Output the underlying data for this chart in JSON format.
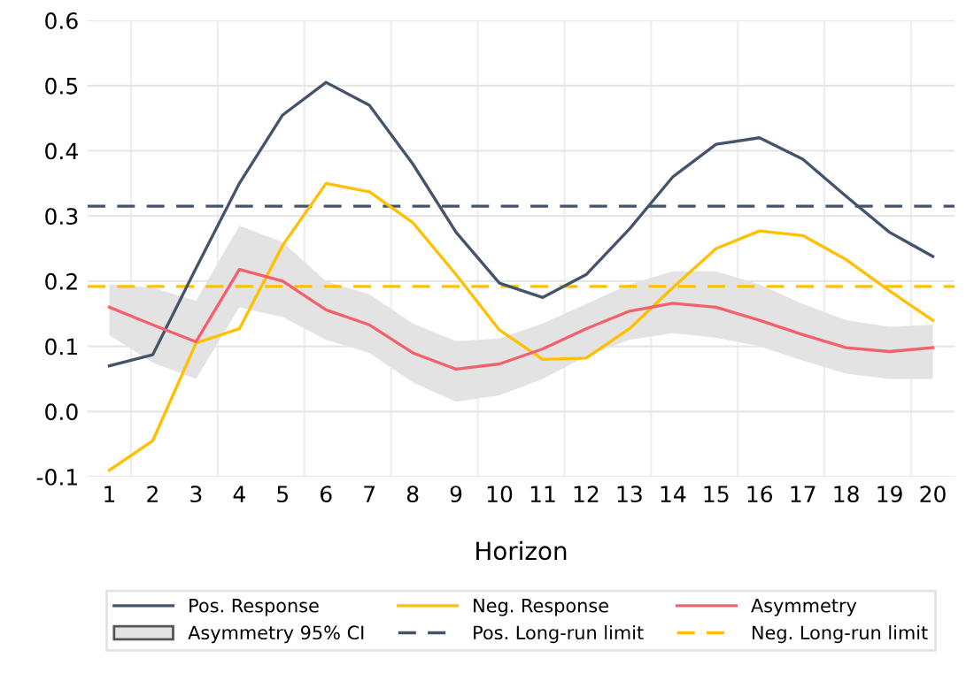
{
  "chart_data": {
    "type": "line",
    "xlabel": "Horizon",
    "categories": [
      "1",
      "2",
      "3",
      "4",
      "5",
      "6",
      "7",
      "8",
      "9",
      "10",
      "11",
      "12",
      "13",
      "14",
      "15",
      "16",
      "17",
      "18",
      "19",
      "20"
    ],
    "series": [
      {
        "name": "Pos. Response",
        "color": "#44546a",
        "values": [
          0.07,
          0.087,
          0.22,
          0.35,
          0.455,
          0.505,
          0.47,
          0.38,
          0.275,
          0.197,
          0.175,
          0.21,
          0.28,
          0.36,
          0.41,
          0.42,
          0.387,
          0.33,
          0.275,
          0.238
        ]
      },
      {
        "name": "Neg. Response",
        "color": "#ffc000",
        "values": [
          -0.09,
          -0.045,
          0.105,
          0.127,
          0.255,
          0.35,
          0.337,
          0.29,
          0.21,
          0.125,
          0.08,
          0.082,
          0.127,
          0.19,
          0.25,
          0.277,
          0.27,
          0.233,
          0.185,
          0.14
        ]
      },
      {
        "name": "Asymmetry",
        "color": "#f4606c",
        "values": [
          0.16,
          0.133,
          0.107,
          0.218,
          0.2,
          0.156,
          0.133,
          0.09,
          0.065,
          0.073,
          0.096,
          0.127,
          0.154,
          0.166,
          0.16,
          0.14,
          0.118,
          0.098,
          0.092,
          0.098
        ],
        "lower": [
          0.117,
          0.075,
          0.05,
          0.16,
          0.145,
          0.11,
          0.09,
          0.045,
          0.015,
          0.025,
          0.05,
          0.085,
          0.11,
          0.12,
          0.113,
          0.1,
          0.078,
          0.058,
          0.05,
          0.05
        ],
        "upper": [
          0.195,
          0.19,
          0.17,
          0.285,
          0.26,
          0.2,
          0.18,
          0.135,
          0.108,
          0.112,
          0.135,
          0.165,
          0.195,
          0.215,
          0.215,
          0.195,
          0.165,
          0.14,
          0.13,
          0.133
        ]
      }
    ],
    "annotations": [
      "Asymmetry 95% CI"
    ],
    "ref_lines": [
      {
        "axis": "y",
        "value": 0.315,
        "label": "Pos. Long-run limit",
        "color": "#44546a",
        "line_style": "dashed"
      },
      {
        "axis": "y",
        "value": 0.192,
        "label": "Neg. Long-run limit",
        "color": "#ffc000",
        "line_style": "dashed"
      }
    ],
    "ylim": [
      -0.1,
      0.6
    ],
    "yticks": [
      {
        "value": -0.1,
        "label": "-0.1"
      },
      {
        "value": 0.0,
        "label": "0.0"
      },
      0.1,
      0.2,
      0.3,
      0.4,
      0.5,
      0.6
    ],
    "grid": true,
    "legend": "bottom",
    "line_style": "solid",
    "marker": "none"
  }
}
